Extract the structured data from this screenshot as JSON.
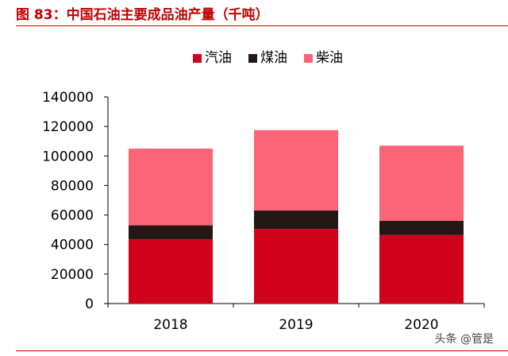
{
  "figure_title": "图 83：中国石油主要成品油产量（千吨）",
  "watermark": "头条 @管是",
  "chart_data": {
    "type": "bar",
    "stacked": true,
    "title": "",
    "xlabel": "",
    "ylabel": "",
    "categories": [
      "2018",
      "2019",
      "2020"
    ],
    "ylim": [
      0,
      140000
    ],
    "yticks": [
      0,
      20000,
      40000,
      60000,
      80000,
      100000,
      120000,
      140000
    ],
    "grid": false,
    "legend_position": "top",
    "series": [
      {
        "name": "汽油",
        "color": "#d0021b",
        "values": [
          43500,
          50500,
          46500
        ]
      },
      {
        "name": "煤油",
        "color": "#231815",
        "values": [
          9500,
          12500,
          9500
        ]
      },
      {
        "name": "柴油",
        "color": "#fc6577",
        "values": [
          52000,
          54500,
          51000
        ]
      }
    ]
  }
}
